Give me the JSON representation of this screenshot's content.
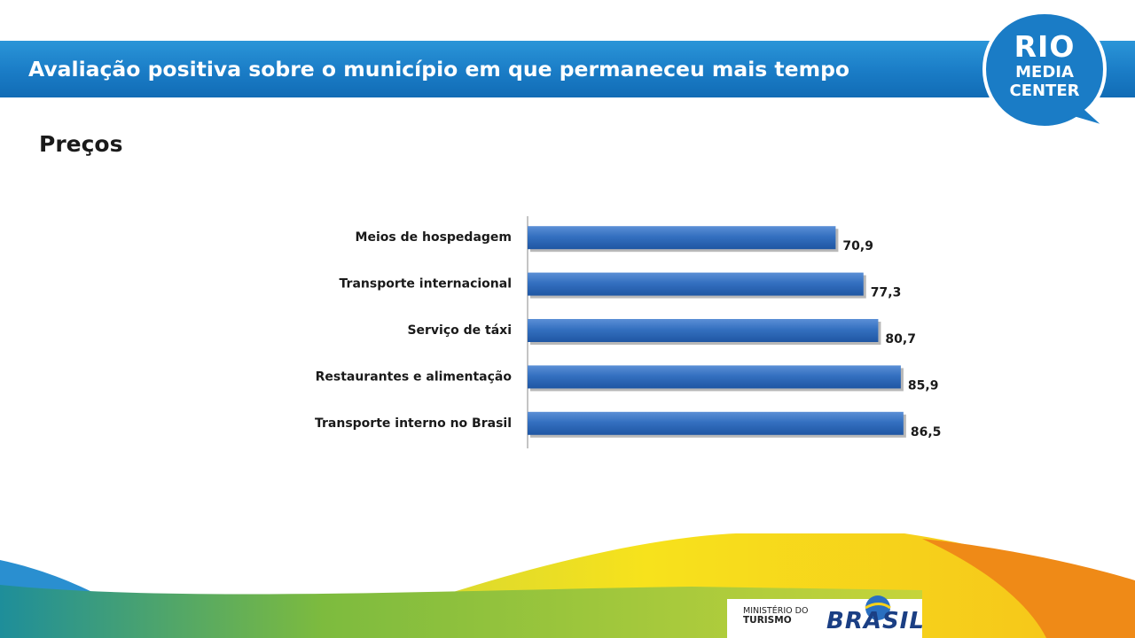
{
  "header": {
    "title": "Avaliação positiva sobre o município em que permaneceu mais tempo"
  },
  "logo": {
    "line1": "RIO",
    "line2": "MEDIA",
    "line3": "CENTER"
  },
  "subtitle": "Preços",
  "chart_data": {
    "type": "bar",
    "orientation": "horizontal",
    "categories": [
      "Meios de hospedagem",
      "Transporte internacional",
      "Serviço de táxi",
      "Restaurantes e alimentação",
      "Transporte interno no Brasil"
    ],
    "values": [
      70.9,
      77.3,
      80.7,
      85.9,
      86.5
    ],
    "value_labels": [
      "70,9",
      "77,3",
      "80,7",
      "85,9",
      "86,5"
    ],
    "xlim": [
      0,
      100
    ],
    "grid": false,
    "legend": "none",
    "bar_color": "#2e68b8"
  },
  "footer": {
    "ministerio_line1": "MINISTÉRIO DO",
    "ministerio_line2": "TURISMO",
    "brasil": "BRASIL"
  },
  "colors": {
    "banner": "#1a7cc6",
    "logo_bg": "#1876c0",
    "wave_blue": "#2a8fd0",
    "wave_yellow": "#f7d21a",
    "wave_green": "#a8c83a",
    "wave_orange": "#ef8a17"
  }
}
